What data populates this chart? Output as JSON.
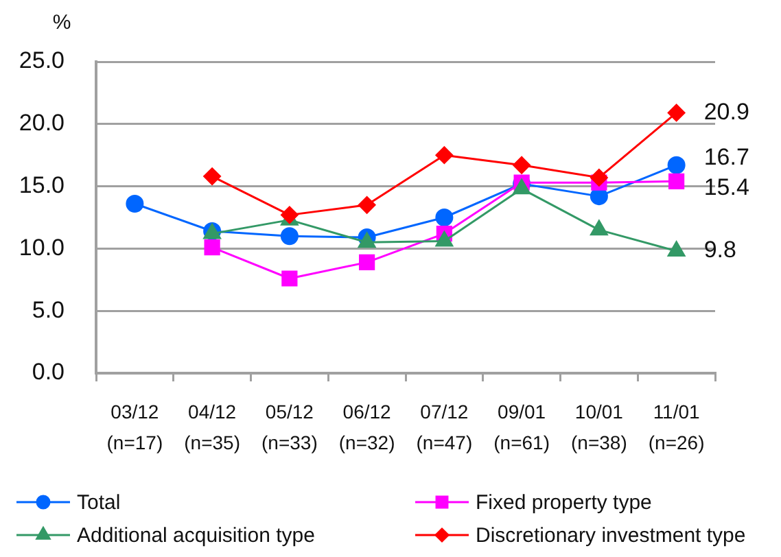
{
  "chart_data": {
    "type": "line",
    "ylabel": "%",
    "categories": [
      "03/12\n(n=17)",
      "04/12\n(n=35)",
      "05/12\n(n=33)",
      "06/12\n(n=32)",
      "07/12\n(n=47)",
      "09/01\n(n=61)",
      "10/01\n(n=38)",
      "11/01\n(n=26)"
    ],
    "ylim": [
      0,
      25
    ],
    "yticks": [
      {
        "value": 0,
        "label": "0.0"
      },
      {
        "value": 5,
        "label": "5.0"
      },
      {
        "value": 10,
        "label": "10.0"
      },
      {
        "value": 15,
        "label": "15.0"
      },
      {
        "value": 20,
        "label": "20.0"
      },
      {
        "value": 25,
        "label": "25.0"
      }
    ],
    "grid": "y",
    "legend": "bottom",
    "series": [
      {
        "name": "Total",
        "color": "#0066ff",
        "marker": "circle",
        "values": [
          13.6,
          11.4,
          11.0,
          10.9,
          12.5,
          15.2,
          14.2,
          16.7
        ],
        "value_labels": [
          null,
          null,
          null,
          null,
          null,
          null,
          null,
          "16.7"
        ]
      },
      {
        "name": "Fixed property type",
        "color": "#ff00ff",
        "marker": "square",
        "values": [
          null,
          10.1,
          7.6,
          8.9,
          11.2,
          15.3,
          15.3,
          15.4
        ],
        "value_labels": [
          null,
          null,
          null,
          null,
          null,
          null,
          null,
          "15.4"
        ]
      },
      {
        "name": "Additional acquisition type",
        "color": "#339966",
        "marker": "triangle",
        "values": [
          null,
          11.2,
          12.3,
          10.5,
          10.6,
          14.8,
          11.5,
          9.8
        ],
        "value_labels": [
          null,
          null,
          null,
          null,
          null,
          null,
          null,
          "9.8"
        ]
      },
      {
        "name": "Discretionary investment type",
        "color": "#ff0000",
        "marker": "diamond",
        "values": [
          null,
          15.8,
          12.7,
          13.5,
          17.5,
          16.7,
          15.7,
          20.9
        ],
        "value_labels": [
          null,
          null,
          null,
          null,
          null,
          null,
          null,
          "20.9"
        ]
      }
    ]
  }
}
